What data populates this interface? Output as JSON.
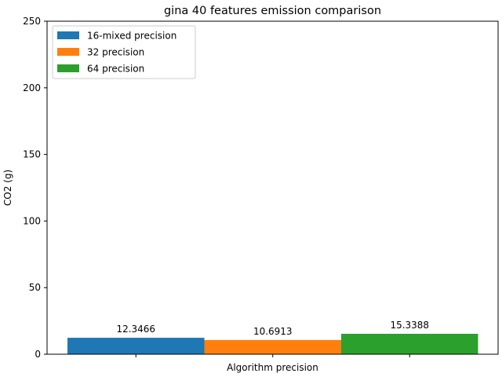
{
  "chart_data": {
    "type": "bar",
    "title": "gina 40 features emission comparison",
    "xlabel": "Algorithm precision",
    "ylabel": "CO2 (g)",
    "ylim": [
      0,
      250
    ],
    "yticks": [
      0,
      50,
      100,
      150,
      200,
      250
    ],
    "grid": false,
    "legend_position": "top-left",
    "series": [
      {
        "name": "16-mixed precision",
        "value": 12.3466,
        "label": "12.3466",
        "color": "#1f77b4"
      },
      {
        "name": "32 precision",
        "value": 10.6913,
        "label": "10.6913",
        "color": "#ff7f0e"
      },
      {
        "name": "64 precision",
        "value": 15.3388,
        "label": "15.3388",
        "color": "#2ca02c"
      }
    ]
  }
}
